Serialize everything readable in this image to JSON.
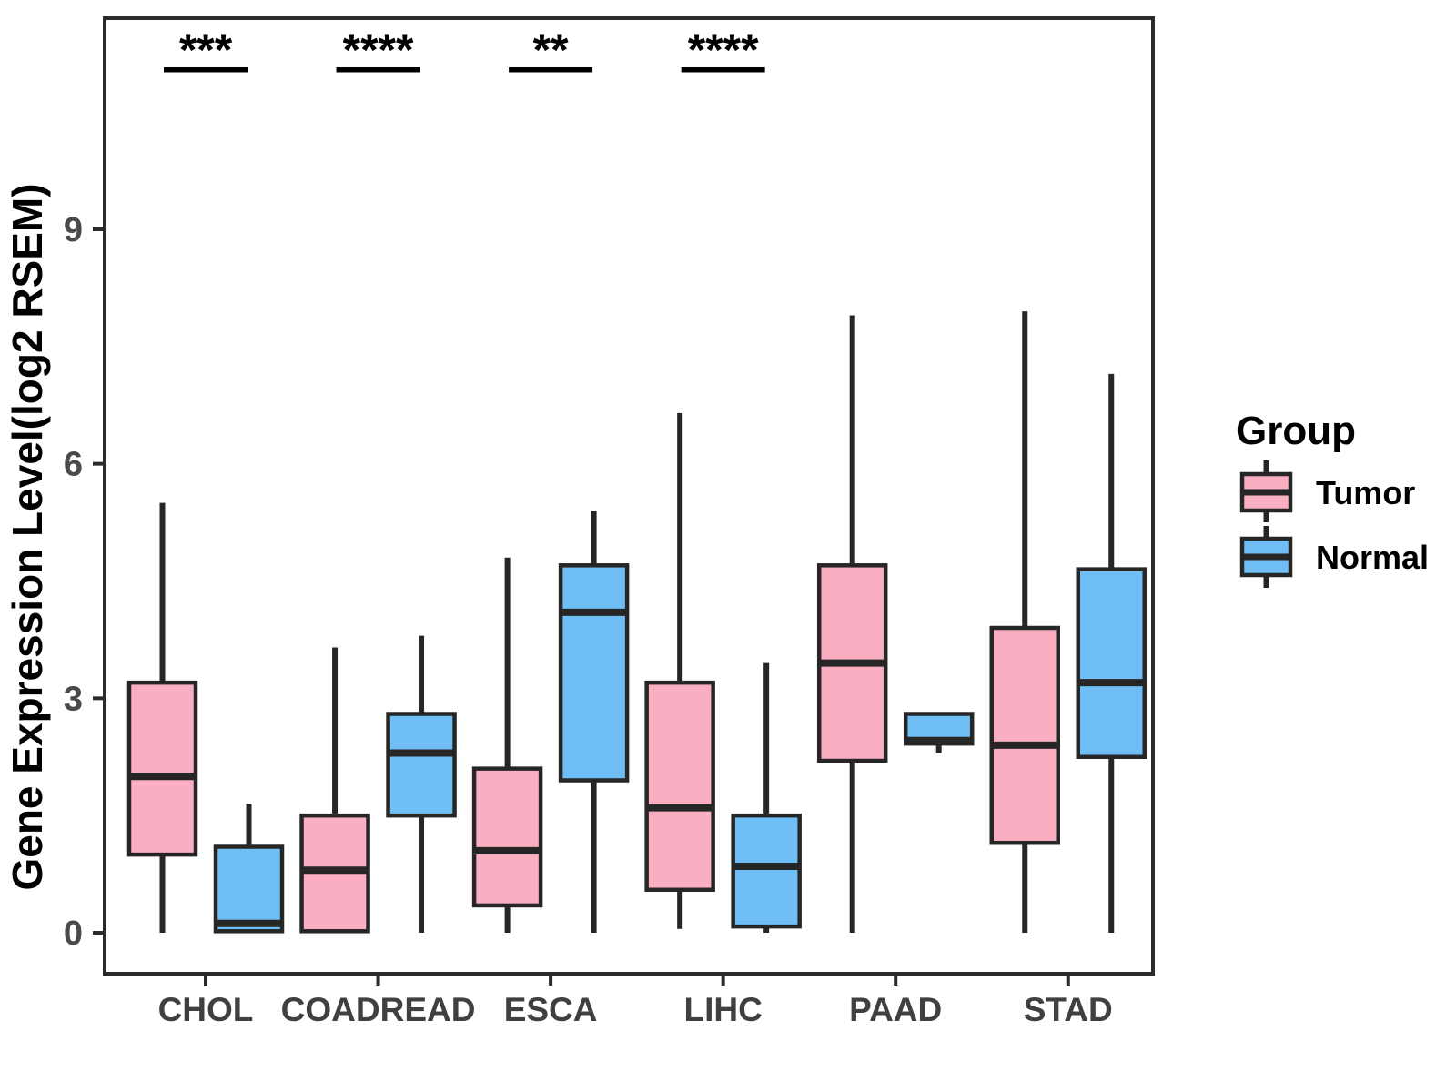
{
  "figure": {
    "background": "#FFFFFF"
  },
  "colors": {
    "tumor": "#F9AFC1",
    "normal": "#6FBEF5",
    "box_stroke": "#262626",
    "panel_border": "#2B2B2B",
    "tick_text": "#4A4A4A",
    "category_text": "#404040",
    "annotation": "#000000"
  },
  "legend": {
    "title": "Group",
    "items": [
      {
        "label": "Tumor",
        "color_key": "tumor"
      },
      {
        "label": "Normal",
        "color_key": "normal"
      }
    ]
  },
  "chart_data": {
    "type": "boxplot",
    "title": "",
    "xlabel": "",
    "ylabel": "Gene Expression Level(log2 RSEM)",
    "y_ticks": [
      0,
      3,
      6,
      9
    ],
    "ylim": [
      -0.55,
      11.75
    ],
    "grid": false,
    "legend_position": "right",
    "categories": [
      "CHOL",
      "COADREAD",
      "ESCA",
      "LIHC",
      "PAAD",
      "STAD"
    ],
    "groups": [
      "Tumor",
      "Normal"
    ],
    "significance": [
      {
        "category": "CHOL",
        "label": "***"
      },
      {
        "category": "COADREAD",
        "label": "****"
      },
      {
        "category": "ESCA",
        "label": "**"
      },
      {
        "category": "LIHC",
        "label": "****"
      }
    ],
    "series": [
      {
        "name": "Tumor",
        "color_key": "tumor",
        "boxes": [
          {
            "category": "CHOL",
            "min": 0,
            "q1": 1.0,
            "median": 2.0,
            "q3": 3.2,
            "max": 5.5
          },
          {
            "category": "COADREAD",
            "min": 0,
            "q1": 0.02,
            "median": 0.8,
            "q3": 1.5,
            "max": 3.65
          },
          {
            "category": "ESCA",
            "min": 0,
            "q1": 0.35,
            "median": 1.05,
            "q3": 2.1,
            "max": 4.8
          },
          {
            "category": "LIHC",
            "min": 0.05,
            "q1": 0.55,
            "median": 1.6,
            "q3": 3.2,
            "max": 6.65
          },
          {
            "category": "PAAD",
            "min": 0,
            "q1": 2.2,
            "median": 3.45,
            "q3": 4.7,
            "max": 7.9
          },
          {
            "category": "STAD",
            "min": 0,
            "q1": 1.15,
            "median": 2.4,
            "q3": 3.9,
            "max": 7.95
          }
        ]
      },
      {
        "name": "Normal",
        "color_key": "normal",
        "boxes": [
          {
            "category": "CHOL",
            "min": 0,
            "q1": 0.02,
            "median": 0.12,
            "q3": 1.1,
            "max": 1.65
          },
          {
            "category": "COADREAD",
            "min": 0,
            "q1": 1.5,
            "median": 2.3,
            "q3": 2.8,
            "max": 3.8
          },
          {
            "category": "ESCA",
            "min": 0,
            "q1": 1.95,
            "median": 4.1,
            "q3": 4.7,
            "max": 5.4
          },
          {
            "category": "LIHC",
            "min": 0,
            "q1": 0.08,
            "median": 0.85,
            "q3": 1.5,
            "max": 3.45
          },
          {
            "category": "PAAD",
            "min": 2.3,
            "q1": 2.42,
            "median": 2.46,
            "q3": 2.8,
            "max": 2.8
          },
          {
            "category": "STAD",
            "min": 0,
            "q1": 2.25,
            "median": 3.2,
            "q3": 4.65,
            "max": 7.15
          }
        ]
      }
    ]
  }
}
